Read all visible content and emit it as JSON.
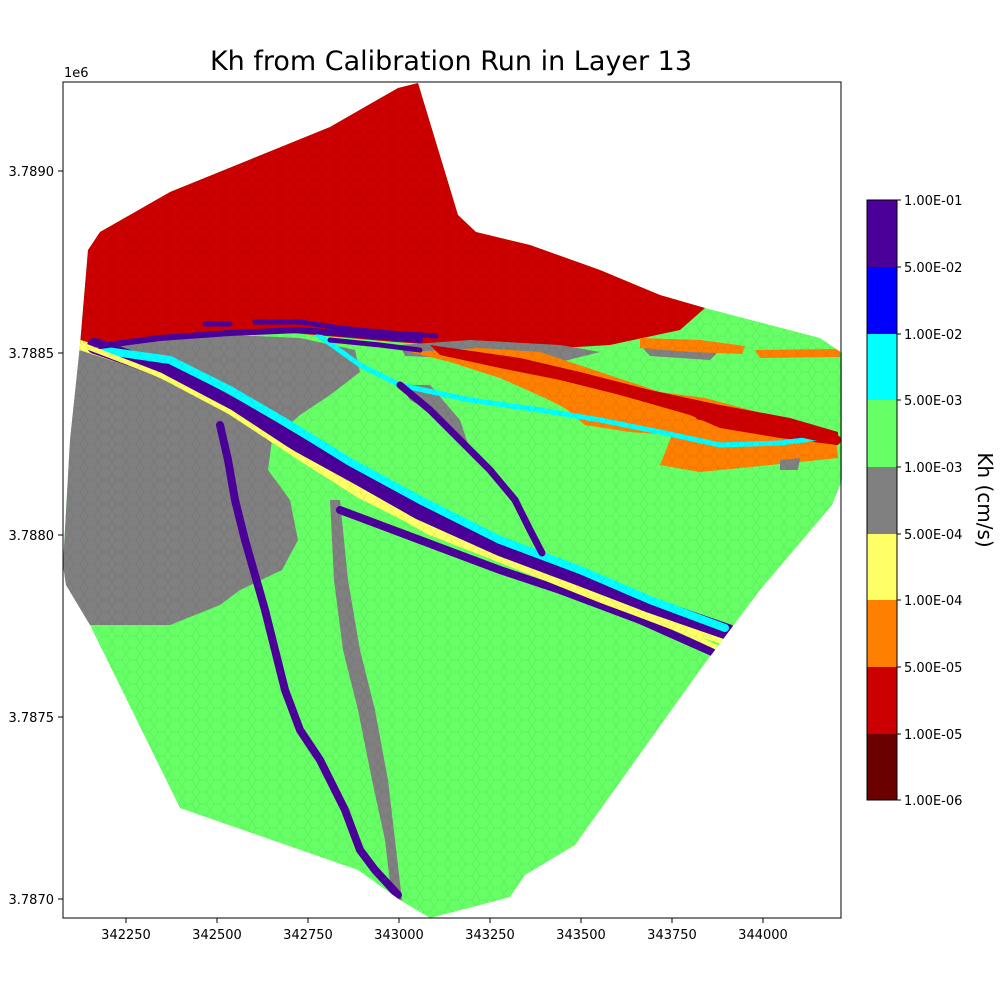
{
  "title": "Kh from Calibration Run in Layer 13",
  "axes": {
    "x_ticks": [
      "342250",
      "342500",
      "342750",
      "343000",
      "343250",
      "343500",
      "343750",
      "344000"
    ],
    "y_ticks": [
      "3.7870",
      "3.7875",
      "3.7880",
      "3.7885",
      "3.7890"
    ],
    "y_offset": "1e6",
    "x_range": [
      342080,
      344215
    ],
    "y_range": [
      3786950,
      3789250
    ]
  },
  "colorbar": {
    "label": "Kh (cm/s)",
    "ticks": [
      "1.00E-06",
      "1.00E-05",
      "5.00E-05",
      "1.00E-04",
      "5.00E-04",
      "1.00E-03",
      "5.00E-03",
      "1.00E-02",
      "5.00E-02",
      "1.00E-01"
    ],
    "colors": [
      "#6b0000",
      "#cc0000",
      "#ff7f00",
      "#ffff66",
      "#808080",
      "#66ff66",
      "#00ffff",
      "#0000ff",
      "#4b0099"
    ]
  },
  "zone_colors": {
    "red": "#cc0000",
    "orange": "#ff7f00",
    "yellow": "#ffff66",
    "gray": "#808080",
    "green": "#66ff66",
    "cyan": "#00ffff",
    "purple": "#4b0099"
  }
}
